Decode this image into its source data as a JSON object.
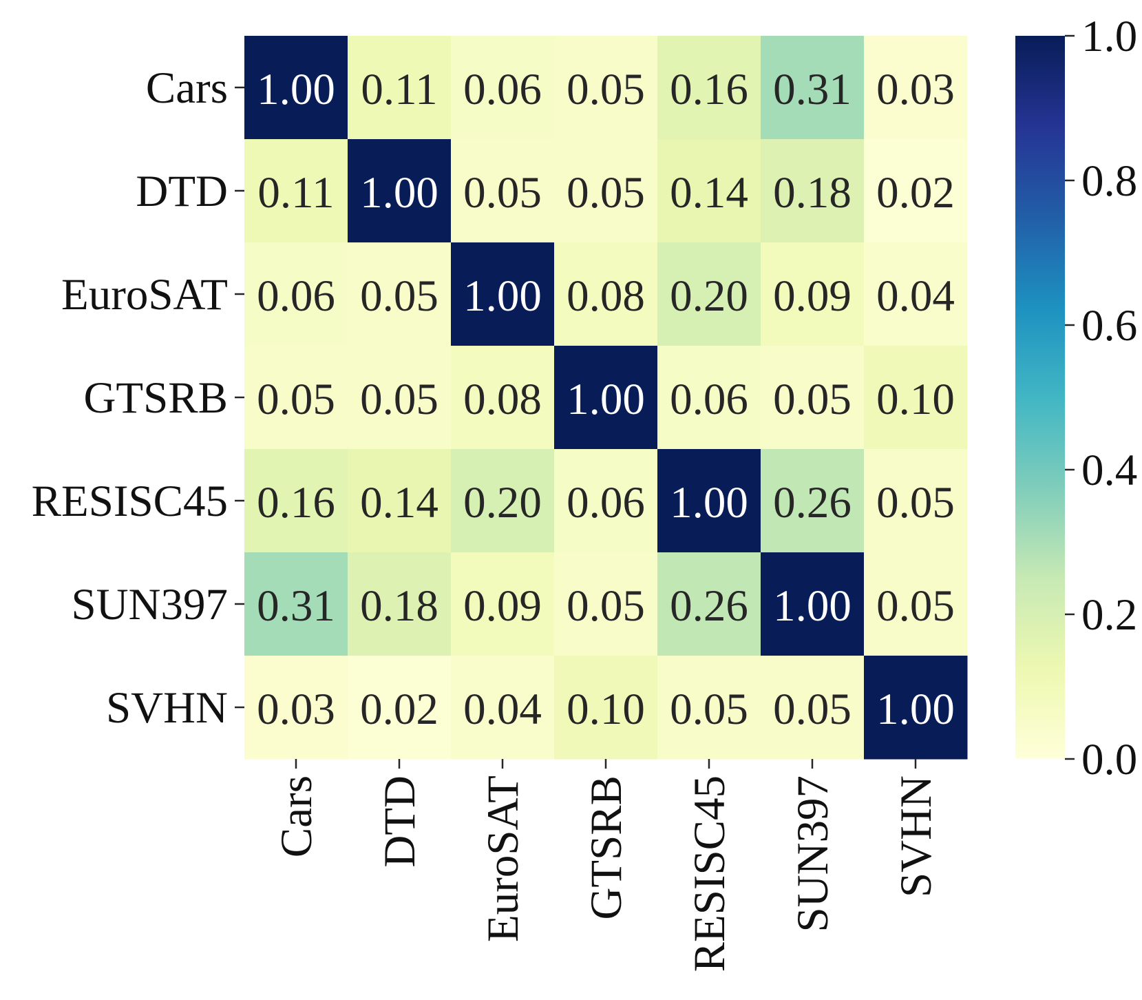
{
  "chart_data": {
    "type": "heatmap",
    "rows": [
      "Cars",
      "DTD",
      "EuroSAT",
      "GTSRB",
      "RESISC45",
      "SUN397",
      "SVHN"
    ],
    "columns": [
      "Cars",
      "DTD",
      "EuroSAT",
      "GTSRB",
      "RESISC45",
      "SUN397",
      "SVHN"
    ],
    "values": [
      [
        1.0,
        0.11,
        0.06,
        0.05,
        0.16,
        0.31,
        0.03
      ],
      [
        0.11,
        1.0,
        0.05,
        0.05,
        0.14,
        0.18,
        0.02
      ],
      [
        0.06,
        0.05,
        1.0,
        0.08,
        0.2,
        0.09,
        0.04
      ],
      [
        0.05,
        0.05,
        0.08,
        1.0,
        0.06,
        0.05,
        0.1
      ],
      [
        0.16,
        0.14,
        0.2,
        0.06,
        1.0,
        0.26,
        0.05
      ],
      [
        0.31,
        0.18,
        0.09,
        0.05,
        0.26,
        1.0,
        0.05
      ],
      [
        0.03,
        0.02,
        0.04,
        0.1,
        0.05,
        0.05,
        1.0
      ]
    ],
    "value_format": "0.00",
    "colorscale": "YlGnBu",
    "colorscale_stops": [
      "#ffffd9",
      "#edf8b1",
      "#c7e9b4",
      "#7fcdbb",
      "#41b6c4",
      "#1d91c0",
      "#225ea8",
      "#253494",
      "#081d58"
    ],
    "color_range": [
      0.0,
      1.0
    ],
    "colorbar": {
      "ticks": [
        0.0,
        0.2,
        0.4,
        0.6,
        0.8,
        1.0
      ],
      "tick_labels": [
        "0.0",
        "0.2",
        "0.4",
        "0.6",
        "0.8",
        "1.0"
      ]
    },
    "annotation_colors": {
      "dark_cell_text": "#ffffff",
      "light_cell_text": "#262626"
    },
    "title": "",
    "xlabel": "",
    "ylabel": ""
  }
}
